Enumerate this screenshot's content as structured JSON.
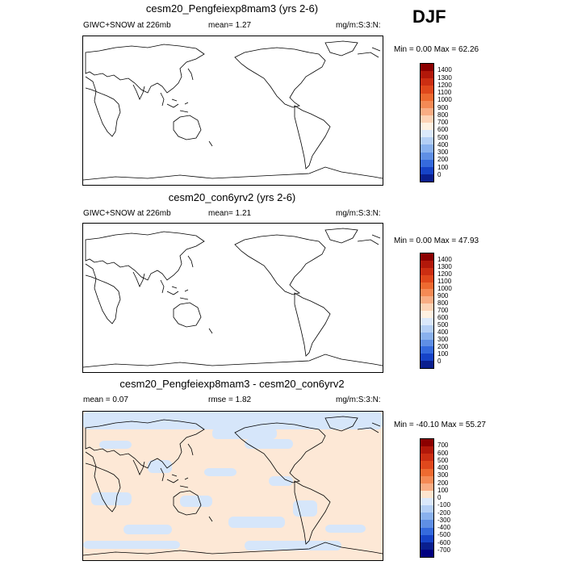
{
  "season": "DJF",
  "panels": [
    {
      "title": "cesm20_Pengfeiexp8mam3 (yrs 2-6)",
      "left_label": "GIWC+SNOW at 226mb",
      "mid_label": "mean=   1.27",
      "right_label": "mg/m:S:3:N:",
      "minmax": "Min =   0.00 Max =  62.26",
      "colorbar": {
        "levels": [
          "1400",
          "1300",
          "1200",
          "1100",
          "1000",
          "900",
          "800",
          "700",
          "600",
          "500",
          "400",
          "300",
          "200",
          "100",
          "0"
        ],
        "colors": [
          "#8b0000",
          "#b2180a",
          "#cc2e12",
          "#e0481c",
          "#ee6a30",
          "#f58a55",
          "#f9ad84",
          "#fdd3b6",
          "#fff2e2",
          "#dbe9fb",
          "#b4cff5",
          "#89b1ee",
          "#5f8fe5",
          "#356add",
          "#1643c7",
          "#0a1f8f"
        ]
      }
    },
    {
      "title": "cesm20_con6yrv2 (yrs 2-6)",
      "left_label": "GIWC+SNOW at 226mb",
      "mid_label": "mean=   1.21",
      "right_label": "mg/m:S:3:N:",
      "minmax": "Min =   0.00 Max =  47.93",
      "colorbar": {
        "levels": [
          "1400",
          "1300",
          "1200",
          "1100",
          "1000",
          "900",
          "800",
          "700",
          "600",
          "500",
          "400",
          "300",
          "200",
          "100",
          "0"
        ],
        "colors": [
          "#8b0000",
          "#b2180a",
          "#cc2e12",
          "#e0481c",
          "#ee6a30",
          "#f58a55",
          "#f9ad84",
          "#fdd3b6",
          "#fff2e2",
          "#dbe9fb",
          "#b4cff5",
          "#89b1ee",
          "#5f8fe5",
          "#356add",
          "#1643c7",
          "#0a1f8f"
        ]
      }
    },
    {
      "title": "cesm20_Pengfeiexp8mam3 - cesm20_con6yrv2",
      "left_label": "mean =   0.07",
      "mid_label": "rmse =   1.82",
      "right_label": "mg/m:S:3:N:",
      "minmax": "Min = -40.10 Max =  55.27",
      "colorbar": {
        "levels": [
          "700",
          "600",
          "500",
          "400",
          "300",
          "200",
          "100",
          "0",
          "-100",
          "-200",
          "-300",
          "-400",
          "-500",
          "-600",
          "-700"
        ],
        "colors": [
          "#8b0000",
          "#b2180a",
          "#cc2e12",
          "#e0481c",
          "#ee6a30",
          "#f58a55",
          "#f9ad84",
          "#fde5cf",
          "#dbe9fb",
          "#b4cff5",
          "#89b1ee",
          "#5f8fe5",
          "#356add",
          "#1643c7",
          "#0a1f8f",
          "#000080"
        ]
      }
    }
  ],
  "colors": {
    "land_line": "#000000",
    "diff_positive_fill": "#fde8d6",
    "diff_negative_fill": "#d6e6fa"
  }
}
